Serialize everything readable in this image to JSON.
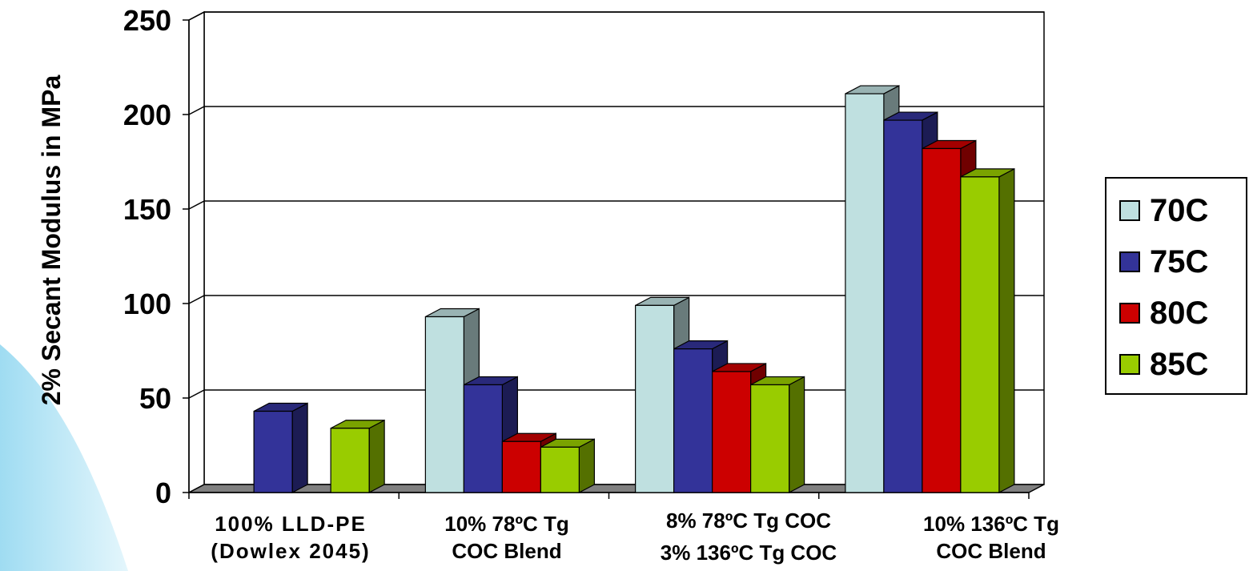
{
  "chart_data": {
    "type": "bar",
    "title": "",
    "ylabel": "2% Secant Modulus in MPa",
    "xlabel": "",
    "ylim": [
      0,
      250
    ],
    "yticks": [
      "0",
      "50",
      "100",
      "150",
      "200",
      "250"
    ],
    "categories": [
      [
        "100% LLD-PE",
        "(Dowlex 2045)"
      ],
      [
        "10% 78ºC Tg",
        "COC Blend"
      ],
      [
        "8% 78ºC Tg COC",
        "3% 136ºC Tg COC"
      ],
      [
        "10% 136ºC Tg",
        "COC Blend"
      ]
    ],
    "series": [
      {
        "name": "70C",
        "color": "#bfe0e0",
        "values": [
          null,
          93,
          99,
          211
        ]
      },
      {
        "name": "75C",
        "color": "#333399",
        "values": [
          43,
          57,
          76,
          197
        ]
      },
      {
        "name": "80C",
        "color": "#cc0000",
        "values": [
          null,
          27,
          64,
          182
        ]
      },
      {
        "name": "85C",
        "color": "#99cc00",
        "values": [
          34,
          24,
          57,
          167
        ]
      }
    ],
    "grid": true,
    "legend_position": "right",
    "style": "3d"
  }
}
